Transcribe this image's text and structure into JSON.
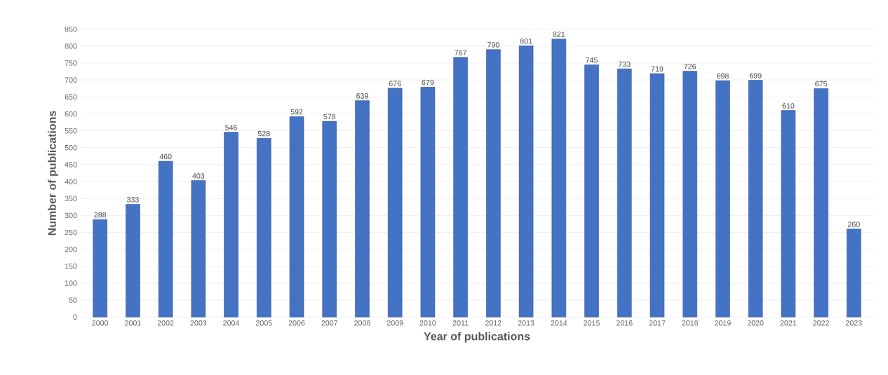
{
  "chart_data": {
    "type": "bar",
    "xlabel": "Year of publications",
    "ylabel": "Number of publications",
    "categories": [
      "2000",
      "2001",
      "2002",
      "2003",
      "2004",
      "2005",
      "2006",
      "2007",
      "2008",
      "2009",
      "2010",
      "2011",
      "2012",
      "2013",
      "2014",
      "2015",
      "2016",
      "2017",
      "2018",
      "2019",
      "2020",
      "2021",
      "2022",
      "2023"
    ],
    "values": [
      288,
      333,
      460,
      403,
      546,
      528,
      592,
      578,
      639,
      676,
      679,
      767,
      790,
      801,
      821,
      745,
      733,
      719,
      726,
      698,
      699,
      610,
      675,
      260
    ],
    "color": "#4472c4",
    "ylim": [
      0,
      850
    ],
    "yticks": [
      0,
      50,
      100,
      150,
      200,
      250,
      300,
      350,
      400,
      450,
      500,
      550,
      600,
      650,
      700,
      750,
      800,
      850
    ],
    "grid": "y",
    "data_labels": true
  }
}
